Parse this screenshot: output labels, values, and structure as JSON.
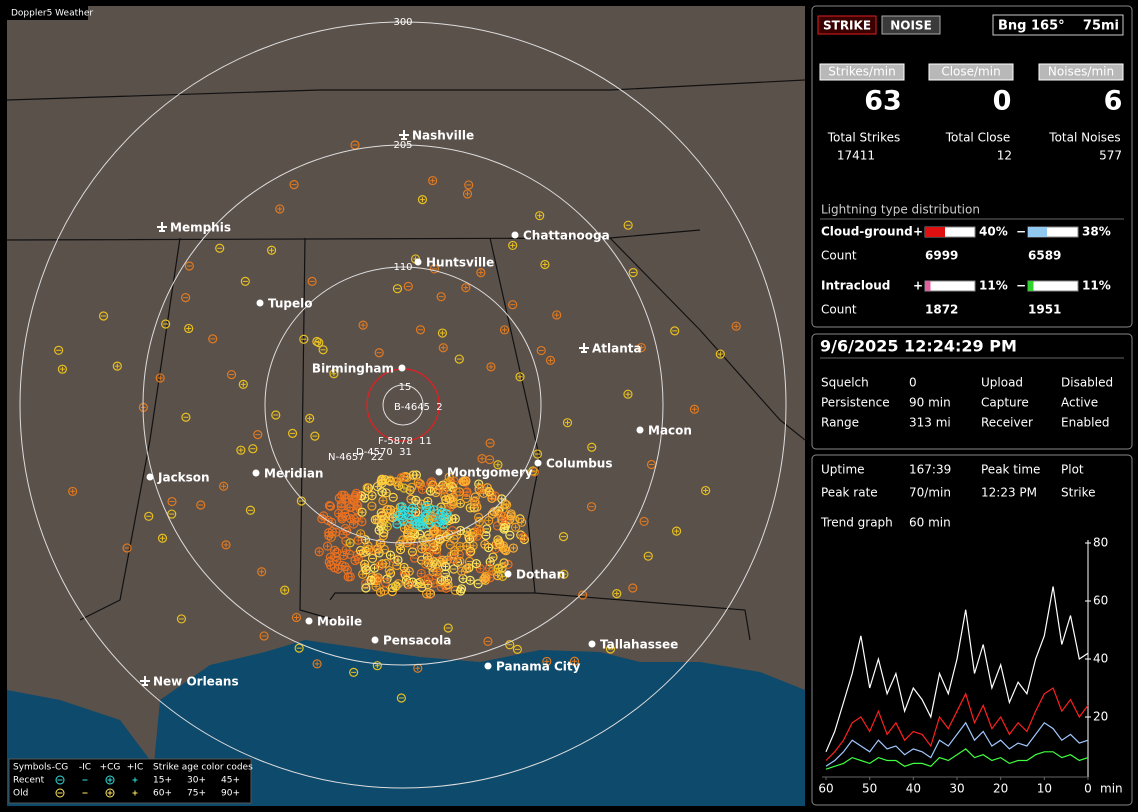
{
  "header": {
    "app": "Doppler5 Weather"
  },
  "map": {
    "rings": [
      "300",
      "205",
      "110",
      "15"
    ],
    "cities": [
      "Nashville",
      "Memphis",
      "Chattanooga",
      "Huntsville",
      "Tupelo",
      "Atlanta",
      "Birmingham",
      "Macon",
      "Montgomery",
      "Columbus",
      "Jackson",
      "Meridian",
      "Dothan",
      "Mobile",
      "Pensacola",
      "Tallahassee",
      "Panama City",
      "New Orleans"
    ],
    "markers": [
      "B-4645  2",
      "F-5878  11",
      "D-4570  31",
      "N-4657  22"
    ]
  },
  "legend": {
    "symbols": "Symbols",
    "kinds": [
      "-CG",
      "-IC",
      "+CG",
      "+IC"
    ],
    "age_title": "Strike age color codes",
    "rows": [
      "Recent",
      "Old"
    ],
    "ages": [
      [
        "15+",
        "30+",
        "45+"
      ],
      [
        "60+",
        "75+",
        "90+"
      ]
    ]
  },
  "panel": {
    "buttons": [
      "STRIKE",
      "NOISE"
    ],
    "bearing": "Bng 165°",
    "range": "75mi",
    "rate_labels": [
      "Strikes/min",
      "Close/min",
      "Noises/min"
    ],
    "rates": [
      63,
      0,
      6
    ],
    "total_labels": [
      "Total Strikes",
      "Total Close",
      "Total Noises"
    ],
    "totals": [
      17411,
      12,
      577
    ],
    "dist_title": "Lightning type distribution",
    "types": [
      {
        "name": "Cloud-ground",
        "signs": [
          "+",
          "−"
        ],
        "percents": [
          40,
          38
        ],
        "percent_labels": [
          "40%",
          "38%"
        ],
        "count_label": "Count",
        "counts": [
          6999,
          6589
        ]
      },
      {
        "name": "Intracloud",
        "signs": [
          "+",
          "−"
        ],
        "percents": [
          11,
          11
        ],
        "percent_labels": [
          "11%",
          "11%"
        ],
        "count_label": "Count",
        "counts": [
          1872,
          1951
        ]
      }
    ],
    "datetime": "9/6/2025 12:24:29 PM",
    "status": [
      [
        "Squelch",
        "0",
        "Upload",
        "Disabled"
      ],
      [
        "Persistence",
        "90 min",
        "Capture",
        "Active"
      ],
      [
        "Range",
        "313 mi",
        "Receiver",
        "Enabled"
      ]
    ],
    "info": [
      [
        "Uptime",
        "167:39",
        "Peak time",
        "Plot"
      ],
      [
        "Peak rate",
        "70/min",
        "12:23 PM",
        "Strike"
      ]
    ],
    "trend_label": "Trend graph",
    "trend_span": "60 min"
  },
  "trend": {
    "type": "line",
    "x_unit": "min",
    "xlim": [
      60,
      0
    ],
    "ylim": [
      0,
      80
    ],
    "xticks": [
      60,
      50,
      40,
      30,
      20,
      10,
      0
    ],
    "yticks": [
      20,
      40,
      60,
      80
    ],
    "x": [
      60,
      58,
      56,
      54,
      52,
      50,
      48,
      46,
      44,
      42,
      40,
      38,
      36,
      34,
      32,
      30,
      28,
      26,
      24,
      22,
      20,
      18,
      16,
      14,
      12,
      10,
      8,
      6,
      4,
      2,
      0
    ],
    "series": [
      {
        "color": "#ffffff",
        "values": [
          8,
          15,
          25,
          35,
          48,
          30,
          40,
          28,
          35,
          22,
          30,
          26,
          20,
          35,
          28,
          40,
          57,
          35,
          45,
          30,
          38,
          25,
          32,
          28,
          40,
          48,
          65,
          45,
          55,
          40,
          42
        ]
      },
      {
        "color": "#ff2020",
        "values": [
          5,
          8,
          12,
          18,
          20,
          15,
          22,
          14,
          18,
          12,
          15,
          14,
          10,
          20,
          16,
          22,
          28,
          18,
          24,
          16,
          20,
          14,
          18,
          15,
          22,
          28,
          30,
          22,
          26,
          20,
          24
        ]
      },
      {
        "color": "#a0c8ff",
        "values": [
          3,
          5,
          8,
          12,
          10,
          8,
          12,
          9,
          10,
          7,
          9,
          8,
          6,
          12,
          10,
          14,
          18,
          12,
          15,
          10,
          12,
          9,
          11,
          10,
          14,
          18,
          16,
          12,
          14,
          11,
          12
        ]
      },
      {
        "color": "#40ff40",
        "values": [
          2,
          3,
          4,
          6,
          5,
          4,
          6,
          5,
          5,
          3,
          4,
          4,
          3,
          6,
          5,
          7,
          9,
          6,
          7,
          5,
          6,
          4,
          5,
          5,
          7,
          8,
          8,
          6,
          7,
          5,
          6
        ]
      }
    ]
  }
}
